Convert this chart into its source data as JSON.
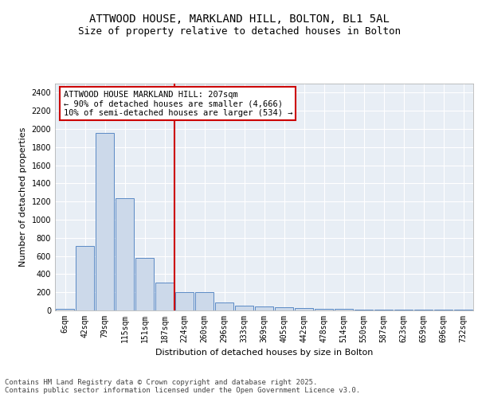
{
  "title_line1": "ATTWOOD HOUSE, MARKLAND HILL, BOLTON, BL1 5AL",
  "title_line2": "Size of property relative to detached houses in Bolton",
  "xlabel": "Distribution of detached houses by size in Bolton",
  "ylabel": "Number of detached properties",
  "bar_color": "#ccd9ea",
  "bar_edge_color": "#5b8ac5",
  "background_color": "#e8eef5",
  "grid_color": "#ffffff",
  "categories": [
    "6sqm",
    "42sqm",
    "79sqm",
    "115sqm",
    "151sqm",
    "187sqm",
    "224sqm",
    "260sqm",
    "296sqm",
    "333sqm",
    "369sqm",
    "405sqm",
    "442sqm",
    "478sqm",
    "514sqm",
    "550sqm",
    "587sqm",
    "623sqm",
    "659sqm",
    "696sqm",
    "732sqm"
  ],
  "values": [
    15,
    710,
    1960,
    1235,
    575,
    305,
    200,
    200,
    85,
    50,
    40,
    35,
    30,
    20,
    20,
    10,
    10,
    5,
    5,
    5,
    5
  ],
  "annotation_text": "ATTWOOD HOUSE MARKLAND HILL: 207sqm\n← 90% of detached houses are smaller (4,666)\n10% of semi-detached houses are larger (534) →",
  "annotation_box_color": "#ffffff",
  "annotation_border_color": "#cc0000",
  "ylim": [
    0,
    2500
  ],
  "yticks": [
    0,
    200,
    400,
    600,
    800,
    1000,
    1200,
    1400,
    1600,
    1800,
    2000,
    2200,
    2400
  ],
  "footer_text": "Contains HM Land Registry data © Crown copyright and database right 2025.\nContains public sector information licensed under the Open Government Licence v3.0.",
  "title_fontsize": 10,
  "subtitle_fontsize": 9,
  "axis_label_fontsize": 8,
  "tick_fontsize": 7,
  "annotation_fontsize": 7.5,
  "footer_fontsize": 6.5
}
